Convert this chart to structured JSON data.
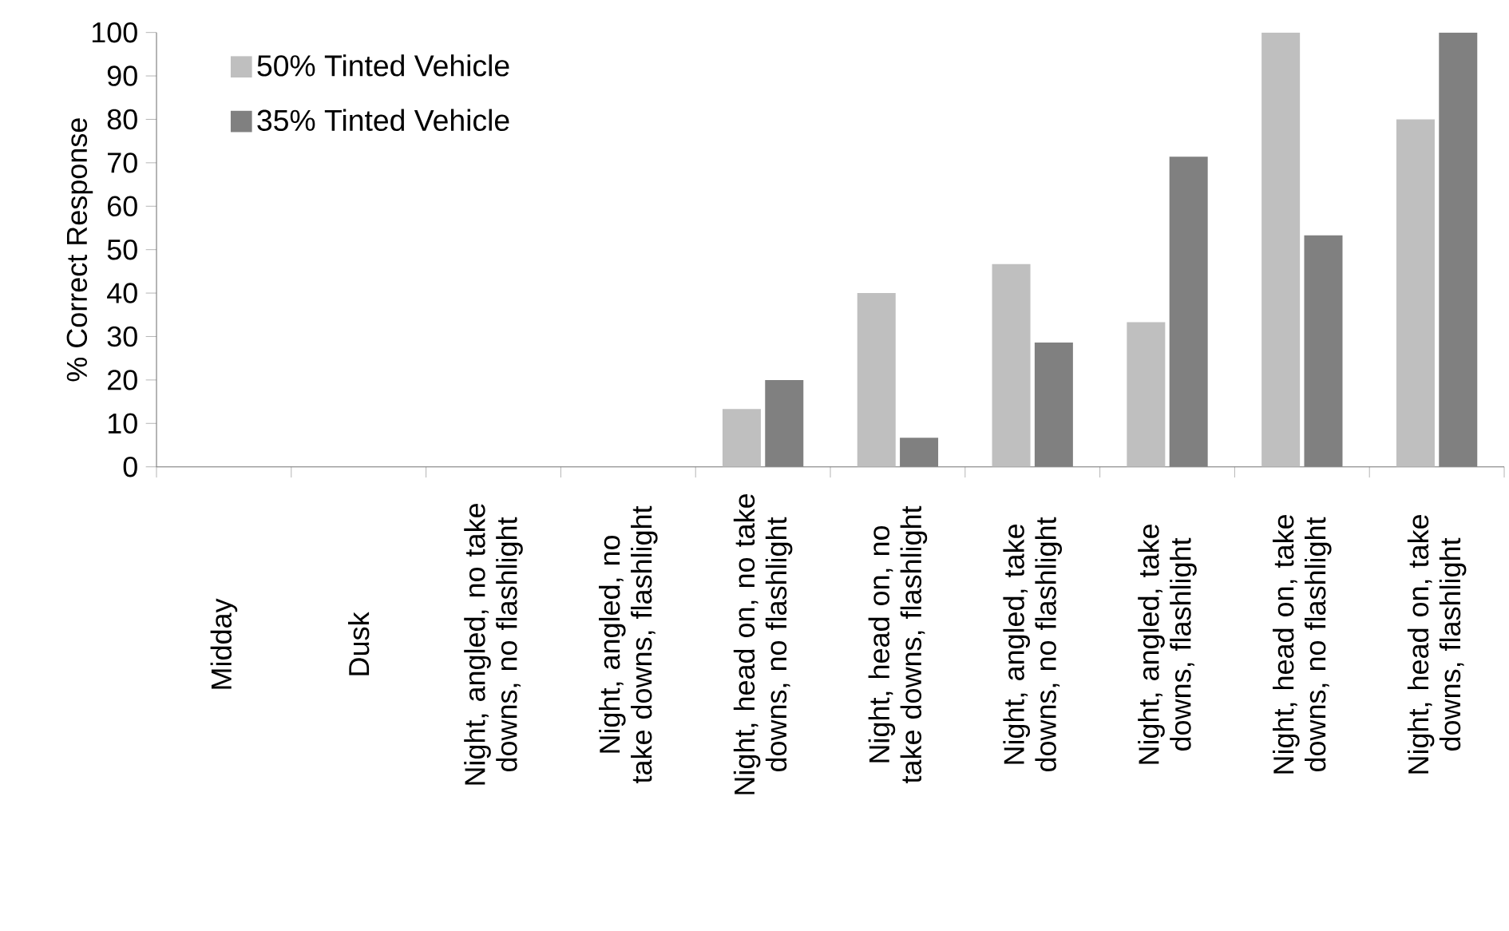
{
  "chart_data": {
    "type": "bar",
    "ylabel": "% Correct Response",
    "categories": [
      "Midday",
      "Dusk",
      "Night, angled, no take downs, no flashlight",
      "Night, angled, no take downs, flashlight",
      "Night, head on, no take downs, no flashlight",
      "Night, head on, no take downs, flashlight",
      "Night, angled, take downs, no flashlight",
      "Night, angled, take downs, flashlight",
      "Night, head on, take downs, no flashlight",
      "Night, head on, take downs, flashlight"
    ],
    "series": [
      {
        "name": "50% Tinted Vehicle",
        "color": "#bfbfbf",
        "values": [
          0,
          0,
          0,
          0,
          13.3,
          40,
          46.7,
          33.3,
          100,
          80
        ]
      },
      {
        "name": "35% Tinted Vehicle",
        "color": "#808080",
        "values": [
          0,
          0,
          0,
          0,
          20,
          6.7,
          28.6,
          71.4,
          53.3,
          100
        ]
      }
    ],
    "ylim": [
      0,
      100
    ],
    "yticks": [
      0,
      10,
      20,
      30,
      40,
      50,
      60,
      70,
      80,
      90,
      100
    ],
    "legend": "top left",
    "grid": false
  }
}
